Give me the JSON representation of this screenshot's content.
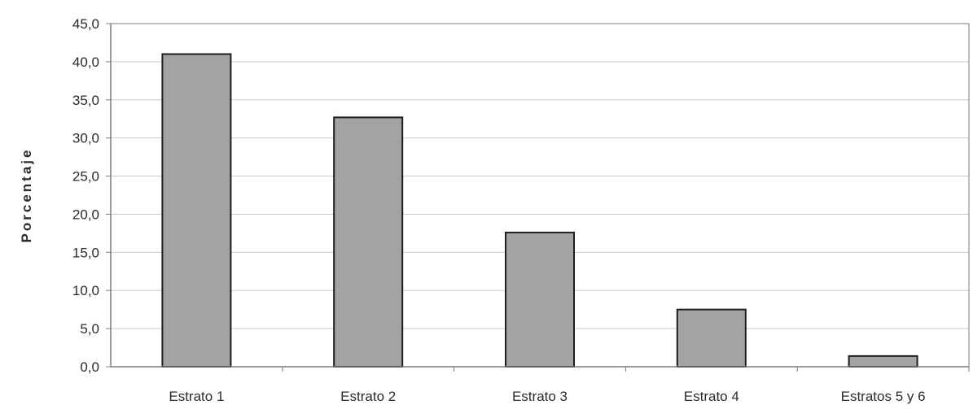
{
  "chart_data": {
    "type": "bar",
    "categories": [
      "Estrato 1",
      "Estrato 2",
      "Estrato 3",
      "Estrato 4",
      "Estratos 5 y 6"
    ],
    "values": [
      41.0,
      32.7,
      17.6,
      7.5,
      1.4
    ],
    "title": "",
    "xlabel": "",
    "ylabel": "Porcentaje",
    "ylim": [
      0,
      45
    ],
    "yticks": [
      "0,0",
      "5,0",
      "10,0",
      "15,0",
      "20,0",
      "25,0",
      "30,0",
      "35,0",
      "40,0",
      "45,0"
    ],
    "grid": true,
    "legend": "none",
    "colors": {
      "bar_fill": "#a3a3a3",
      "bar_stroke": "#1e1e1e",
      "grid": "#c9c9c9",
      "frame": "#7a7a7a",
      "text": "#2b2b2b"
    }
  }
}
